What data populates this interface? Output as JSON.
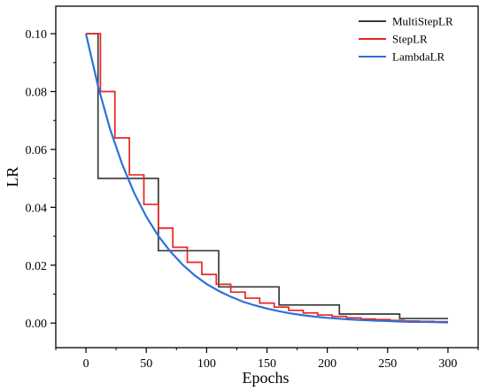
{
  "chart_data": {
    "type": "line",
    "xlabel": "Epochs",
    "ylabel": "LR",
    "xlim": [
      -25,
      325
    ],
    "ylim": [
      -0.0085,
      0.1095
    ],
    "x_ticks": [
      0,
      50,
      100,
      150,
      200,
      250,
      300
    ],
    "x_tick_labels": [
      "0",
      "50",
      "100",
      "150",
      "200",
      "250",
      "300"
    ],
    "y_ticks": [
      0.0,
      0.02,
      0.04,
      0.06,
      0.08,
      0.1
    ],
    "y_tick_labels": [
      "0.00",
      "0.02",
      "0.04",
      "0.06",
      "0.08",
      "0.10"
    ],
    "grid": false,
    "legend_position": "top-right",
    "series": [
      {
        "name": "MultiStepLR",
        "color": "#3a3a3a",
        "style": "step",
        "x": [
          0,
          10,
          10,
          60,
          60,
          110,
          110,
          160,
          160,
          210,
          210,
          260,
          260,
          300
        ],
        "y": [
          0.1,
          0.1,
          0.05,
          0.05,
          0.025,
          0.025,
          0.0125,
          0.0125,
          0.00625,
          0.00625,
          0.003125,
          0.003125,
          0.0015625,
          0.0015625
        ]
      },
      {
        "name": "StepLR",
        "color": "#ee2222",
        "style": "step",
        "x": [
          0,
          12,
          12,
          24,
          24,
          36,
          36,
          48,
          48,
          60,
          60,
          72,
          72,
          84,
          84,
          96,
          96,
          108,
          108,
          120,
          120,
          132,
          132,
          144,
          144,
          156,
          156,
          168,
          168,
          180,
          180,
          192,
          192,
          204,
          204,
          216,
          216,
          228,
          228,
          240,
          240,
          252,
          252,
          264,
          264,
          276,
          276,
          288,
          288,
          300
        ],
        "y": [
          0.1,
          0.1,
          0.08,
          0.08,
          0.064,
          0.064,
          0.0512,
          0.0512,
          0.041,
          0.041,
          0.0328,
          0.0328,
          0.0262,
          0.0262,
          0.021,
          0.021,
          0.0168,
          0.0168,
          0.0134,
          0.0134,
          0.0107,
          0.0107,
          0.0086,
          0.0086,
          0.0069,
          0.0069,
          0.0055,
          0.0055,
          0.0044,
          0.0044,
          0.0035,
          0.0035,
          0.0028,
          0.0028,
          0.0023,
          0.0023,
          0.0018,
          0.0018,
          0.0014,
          0.0014,
          0.0012,
          0.0012,
          0.0009,
          0.0009,
          0.0007,
          0.0007,
          0.0006,
          0.0006,
          0.0005,
          0.0005
        ]
      },
      {
        "name": "LambdaLR",
        "color": "#2a72d8",
        "style": "smooth",
        "x": [
          0,
          10,
          20,
          30,
          40,
          50,
          60,
          70,
          80,
          90,
          100,
          110,
          120,
          130,
          140,
          150,
          160,
          170,
          180,
          190,
          200,
          210,
          220,
          230,
          240,
          250,
          260,
          270,
          280,
          290,
          300
        ],
        "y": [
          0.1,
          0.0819,
          0.067,
          0.0549,
          0.0449,
          0.0368,
          0.0301,
          0.0247,
          0.0202,
          0.0165,
          0.0135,
          0.0111,
          0.0091,
          0.0074,
          0.0061,
          0.005,
          0.0041,
          0.0033,
          0.0027,
          0.0022,
          0.0018,
          0.0015,
          0.0012,
          0.001,
          0.0008,
          0.0007,
          0.0005,
          0.0004,
          0.0004,
          0.0003,
          0.0002
        ]
      }
    ]
  }
}
